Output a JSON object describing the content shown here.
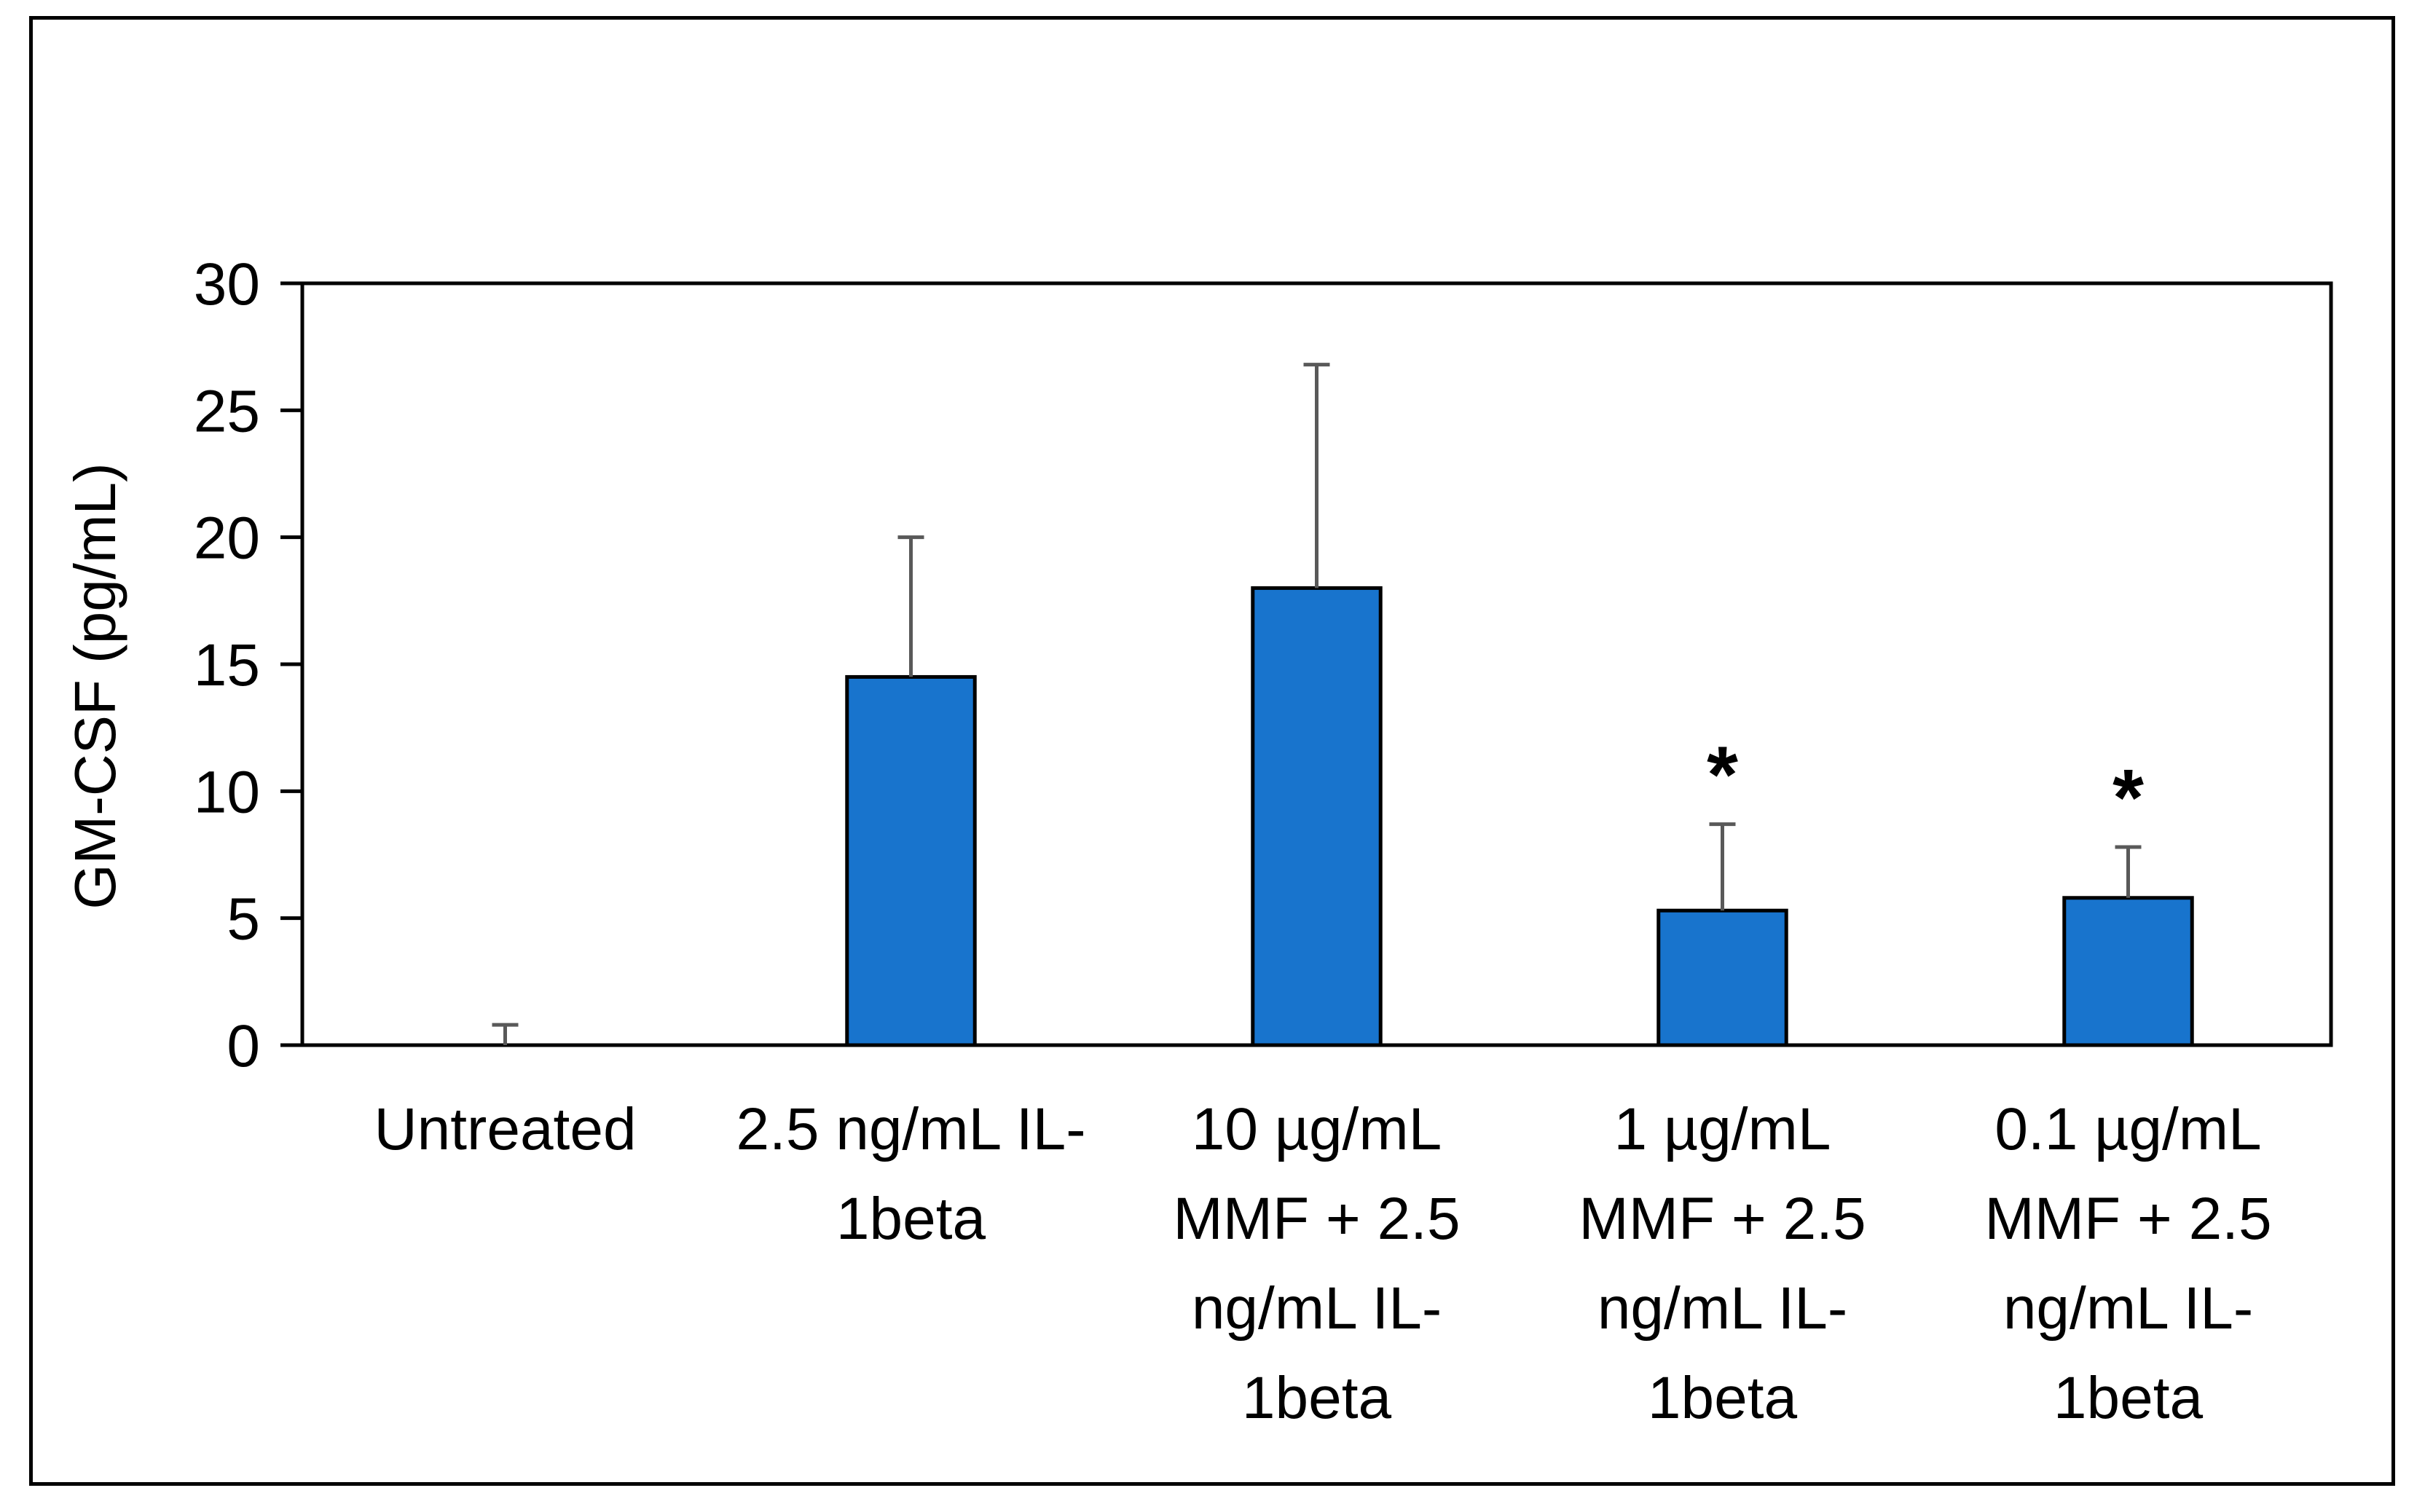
{
  "chart_data": {
    "type": "bar",
    "title": "",
    "xlabel": "",
    "ylabel": "GM-CSF (pg/mL)",
    "ylim": [
      0,
      30
    ],
    "yticks": [
      0,
      5,
      10,
      15,
      20,
      25,
      30
    ],
    "grid": false,
    "legend": "none",
    "bar_color": "#1874CD",
    "error_color": "#595959",
    "categories": [
      [
        "Untreated"
      ],
      [
        "2.5 ng/mL IL-",
        "1beta"
      ],
      [
        "10 µg/mL",
        "MMF + 2.5",
        "ng/mL IL-",
        "1beta"
      ],
      [
        "1 µg/mL",
        "MMF + 2.5",
        "ng/mL IL-",
        "1beta"
      ],
      [
        "0.1 µg/mL",
        "MMF + 2.5",
        "ng/mL IL-",
        "1beta"
      ]
    ],
    "values": [
      0.0,
      14.5,
      18.0,
      5.3,
      5.8
    ],
    "errors": [
      0.8,
      5.5,
      8.8,
      3.4,
      2.0
    ],
    "significance": [
      "",
      "",
      "",
      "*",
      "*"
    ]
  }
}
